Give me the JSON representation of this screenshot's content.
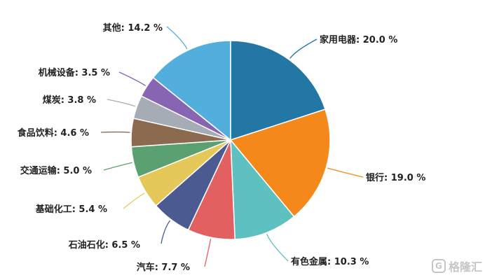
{
  "chart_data": {
    "type": "pie",
    "unit": "%",
    "slices": [
      {
        "label": "家用电器",
        "value": 20.0,
        "display": "20.0 %",
        "color": "#2377a4"
      },
      {
        "label": "银行",
        "value": 19.0,
        "display": "19.0 %",
        "color": "#f5881b"
      },
      {
        "label": "有色金属",
        "value": 10.3,
        "display": "10.3 %",
        "color": "#5fc0c0"
      },
      {
        "label": "汽车",
        "value": 7.7,
        "display": "7.7 %",
        "color": "#e2605f"
      },
      {
        "label": "石油石化",
        "value": 6.5,
        "display": "6.5 %",
        "color": "#4b5b92"
      },
      {
        "label": "基础化工",
        "value": 5.4,
        "display": "5.4 %",
        "color": "#e5c75a"
      },
      {
        "label": "交通运输",
        "value": 5.0,
        "display": "5.0 %",
        "color": "#5ba070"
      },
      {
        "label": "食品饮料",
        "value": 4.6,
        "display": "4.6 %",
        "color": "#8c6a50"
      },
      {
        "label": "煤炭",
        "value": 3.8,
        "display": "3.8 %",
        "color": "#a5acb5"
      },
      {
        "label": "机械设备",
        "value": 3.5,
        "display": "3.5 %",
        "color": "#8865b3"
      },
      {
        "label": "其他",
        "value": 14.2,
        "display": "14.2 %",
        "color": "#52aedd"
      }
    ]
  },
  "watermark": {
    "icon": "G",
    "text": "格隆汇"
  }
}
